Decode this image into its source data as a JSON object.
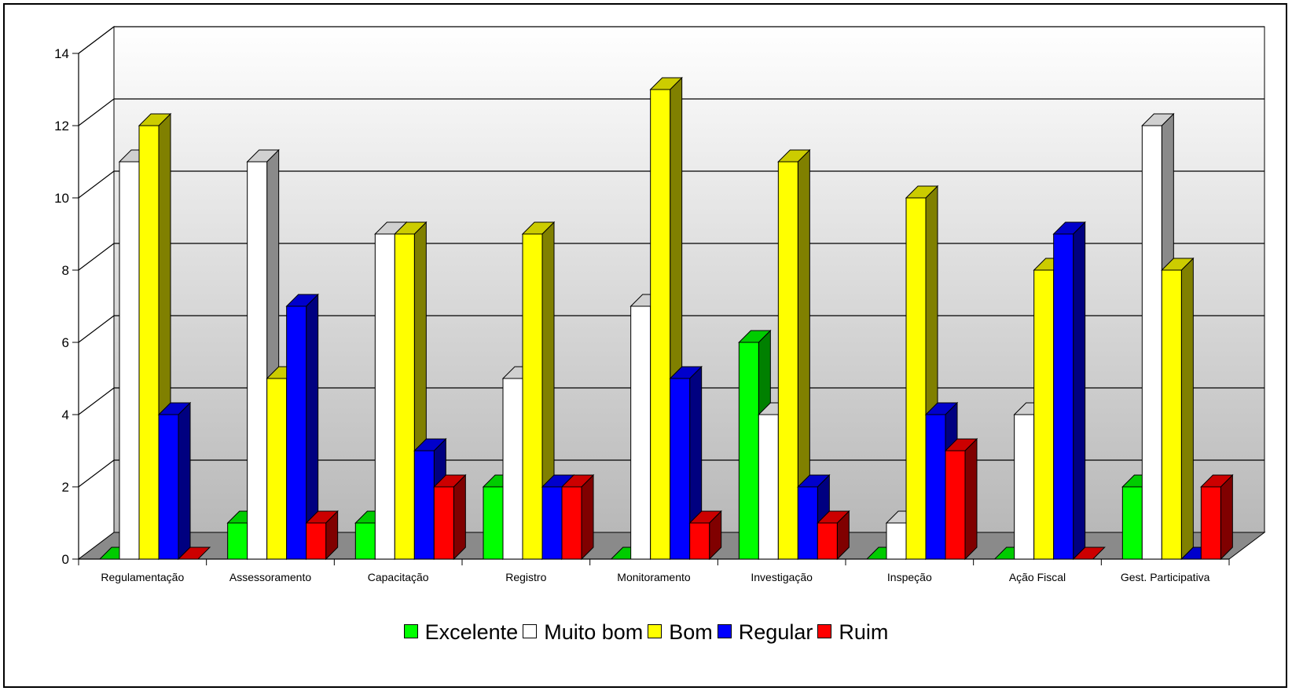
{
  "chart_data": {
    "type": "bar",
    "title": "",
    "xlabel": "",
    "ylabel": "",
    "ylim": [
      0,
      14
    ],
    "yticks": [
      0,
      2,
      4,
      6,
      8,
      10,
      12,
      14
    ],
    "grid": true,
    "legend_position": "bottom",
    "categories": [
      "Regulamentação",
      "Assessoramento",
      "Capacitação",
      "Registro",
      "Monitoramento",
      "Investigação",
      "Inspeção",
      "Ação Fiscal",
      "Gest. Participativa"
    ],
    "series": [
      {
        "name": "Excelente",
        "color": "#00ff00",
        "values": [
          0,
          1,
          1,
          2,
          0,
          6,
          0,
          0,
          2
        ]
      },
      {
        "name": "Muito bom",
        "color": "#ffffff",
        "values": [
          11,
          11,
          9,
          5,
          7,
          4,
          1,
          4,
          12
        ]
      },
      {
        "name": "Bom",
        "color": "#ffff00",
        "values": [
          12,
          5,
          9,
          9,
          13,
          11,
          10,
          8,
          8
        ]
      },
      {
        "name": "Regular",
        "color": "#0000ff",
        "values": [
          4,
          7,
          3,
          2,
          5,
          2,
          4,
          9,
          0
        ]
      },
      {
        "name": "Ruim",
        "color": "#ff0000",
        "values": [
          0,
          1,
          2,
          2,
          1,
          1,
          3,
          0,
          2
        ]
      }
    ]
  }
}
